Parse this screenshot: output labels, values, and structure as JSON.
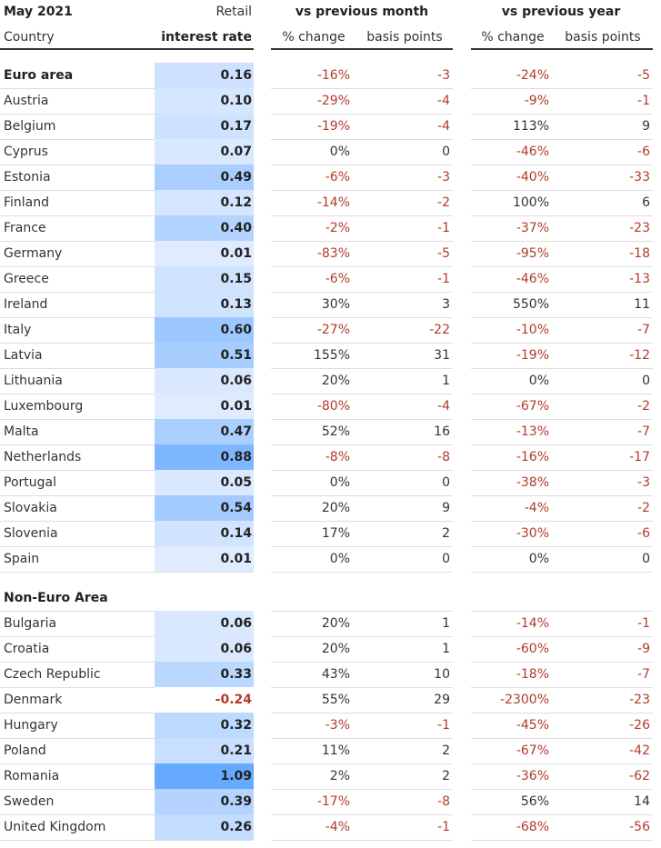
{
  "header": {
    "date": "May 2021",
    "retail": "Retail",
    "month_group": "vs previous month",
    "year_group": "vs previous year",
    "country": "Country",
    "rate": "interest rate",
    "month_pct": "% change",
    "month_bp": "basis points",
    "year_pct": "% change",
    "year_bp": "basis points"
  },
  "sections": [
    {
      "rows": [
        [
          "Euro area",
          "0.16",
          "-16%",
          "-3",
          "-24%",
          "-5"
        ],
        [
          "Austria",
          "0.10",
          "-29%",
          "-4",
          "-9%",
          "-1"
        ],
        [
          "Belgium",
          "0.17",
          "-19%",
          "-4",
          "113%",
          "9"
        ],
        [
          "Cyprus",
          "0.07",
          "0%",
          "0",
          "-46%",
          "-6"
        ],
        [
          "Estonia",
          "0.49",
          "-6%",
          "-3",
          "-40%",
          "-33"
        ],
        [
          "Finland",
          "0.12",
          "-14%",
          "-2",
          "100%",
          "6"
        ],
        [
          "France",
          "0.40",
          "-2%",
          "-1",
          "-37%",
          "-23"
        ],
        [
          "Germany",
          "0.01",
          "-83%",
          "-5",
          "-95%",
          "-18"
        ],
        [
          "Greece",
          "0.15",
          "-6%",
          "-1",
          "-46%",
          "-13"
        ],
        [
          "Ireland",
          "0.13",
          "30%",
          "3",
          "550%",
          "11"
        ],
        [
          "Italy",
          "0.60",
          "-27%",
          "-22",
          "-10%",
          "-7"
        ],
        [
          "Latvia",
          "0.51",
          "155%",
          "31",
          "-19%",
          "-12"
        ],
        [
          "Lithuania",
          "0.06",
          "20%",
          "1",
          "0%",
          "0"
        ],
        [
          "Luxembourg",
          "0.01",
          "-80%",
          "-4",
          "-67%",
          "-2"
        ],
        [
          "Malta",
          "0.47",
          "52%",
          "16",
          "-13%",
          "-7"
        ],
        [
          "Netherlands",
          "0.88",
          "-8%",
          "-8",
          "-16%",
          "-17"
        ],
        [
          "Portugal",
          "0.05",
          "0%",
          "0",
          "-38%",
          "-3"
        ],
        [
          "Slovakia",
          "0.54",
          "20%",
          "9",
          "-4%",
          "-2"
        ],
        [
          "Slovenia",
          "0.14",
          "17%",
          "2",
          "-30%",
          "-6"
        ],
        [
          "Spain",
          "0.01",
          "0%",
          "0",
          "0%",
          "0"
        ]
      ]
    },
    {
      "title": "Non-Euro Area",
      "rows": [
        [
          "Bulgaria",
          "0.06",
          "20%",
          "1",
          "-14%",
          "-1"
        ],
        [
          "Croatia",
          "0.06",
          "20%",
          "1",
          "-60%",
          "-9"
        ],
        [
          "Czech Republic",
          "0.33",
          "43%",
          "10",
          "-18%",
          "-7"
        ],
        [
          "Denmark",
          "-0.24",
          "55%",
          "29",
          "-2300%",
          "-23"
        ],
        [
          "Hungary",
          "0.32",
          "-3%",
          "-1",
          "-45%",
          "-26"
        ],
        [
          "Poland",
          "0.21",
          "11%",
          "2",
          "-67%",
          "-42"
        ],
        [
          "Romania",
          "1.09",
          "2%",
          "2",
          "-36%",
          "-62"
        ],
        [
          "Sweden",
          "0.39",
          "-17%",
          "-8",
          "56%",
          "14"
        ],
        [
          "United Kingdom",
          "0.26",
          "-4%",
          "-1",
          "-68%",
          "-56"
        ]
      ]
    }
  ]
}
